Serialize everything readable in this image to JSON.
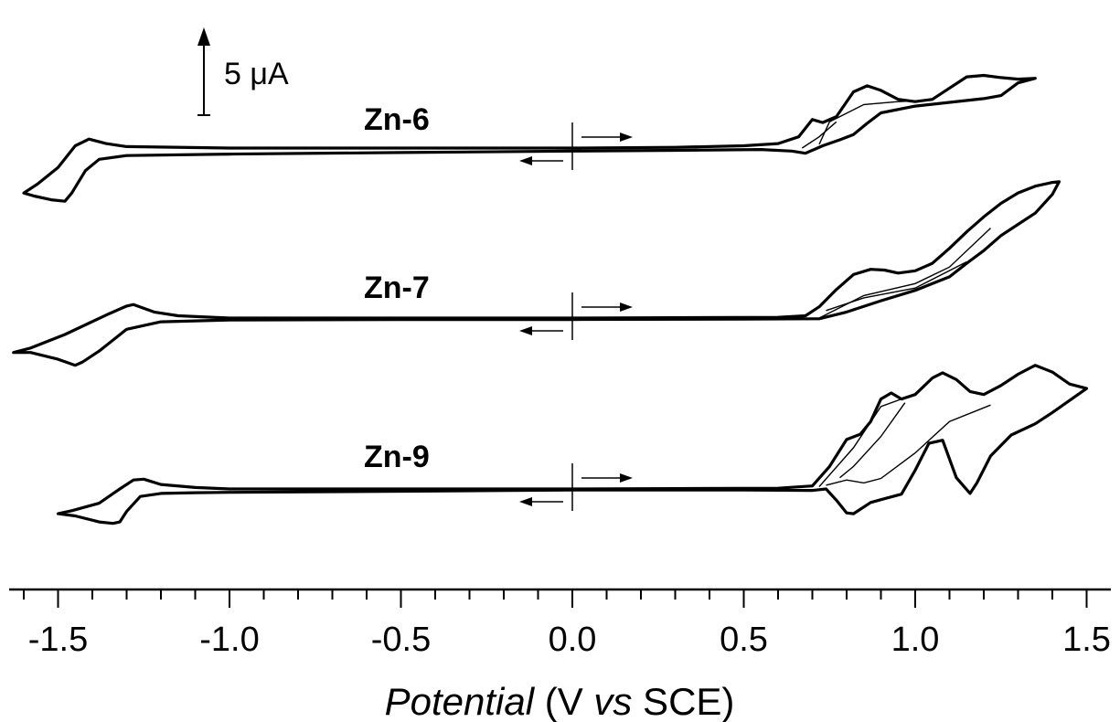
{
  "chart_data": {
    "type": "line",
    "title": "",
    "xlabel": {
      "italic": "Potential",
      "rest": " (V ",
      "vs": "vs",
      "unit": " SCE)"
    },
    "ylabel": "",
    "xlim": [
      -1.65,
      1.6
    ],
    "x_major_ticks": [
      -1.5,
      -1.0,
      -0.5,
      0.0,
      0.5,
      1.0,
      1.5
    ],
    "x_tick_labels": [
      "-1.5",
      "-1.0",
      "-0.5",
      "0.0",
      "0.5",
      "1.0",
      "1.5"
    ],
    "x_minor_step": 0.1,
    "grid": false,
    "scale_bar": {
      "label": "5 μA",
      "value_uA": 5
    },
    "series": [
      {
        "name": "Zn-6",
        "baseline_uA": 0,
        "forward": [
          [
            0,
            0
          ],
          [
            0.3,
            0.1
          ],
          [
            0.5,
            0.3
          ],
          [
            0.6,
            0.6
          ],
          [
            0.66,
            1.5
          ],
          [
            0.7,
            3.8
          ],
          [
            0.73,
            3.4
          ],
          [
            0.77,
            4.2
          ],
          [
            0.82,
            7.5
          ],
          [
            0.86,
            8.3
          ],
          [
            0.9,
            7.7
          ],
          [
            0.95,
            6.5
          ],
          [
            1.0,
            6.2
          ],
          [
            1.05,
            6.5
          ],
          [
            1.1,
            8.0
          ],
          [
            1.15,
            9.5
          ],
          [
            1.2,
            9.7
          ],
          [
            1.25,
            9.4
          ],
          [
            1.3,
            9.2
          ],
          [
            1.35,
            9.3
          ]
        ],
        "reverse": [
          [
            1.35,
            9.3
          ],
          [
            1.3,
            8.7
          ],
          [
            1.25,
            7.0
          ],
          [
            1.2,
            6.6
          ],
          [
            1.1,
            6.1
          ],
          [
            1.0,
            5.6
          ],
          [
            0.9,
            4.7
          ],
          [
            0.86,
            3.3
          ],
          [
            0.82,
            1.8
          ],
          [
            0.78,
            1.1
          ],
          [
            0.73,
            0.3
          ],
          [
            0.68,
            -0.7
          ],
          [
            0.64,
            -0.4
          ],
          [
            0.55,
            -0.2
          ],
          [
            0.3,
            -0.3
          ],
          [
            0,
            -0.4
          ],
          [
            -0.5,
            -0.6
          ],
          [
            -1.0,
            -0.8
          ],
          [
            -1.3,
            -1.0
          ],
          [
            -1.38,
            -1.5
          ],
          [
            -1.42,
            -3.0
          ],
          [
            -1.46,
            -6.0
          ],
          [
            -1.48,
            -7.1
          ],
          [
            -1.52,
            -6.9
          ],
          [
            -1.57,
            -6.4
          ],
          [
            -1.6,
            -6.0
          ],
          [
            -1.56,
            -4.8
          ],
          [
            -1.5,
            -2.6
          ],
          [
            -1.45,
            0.3
          ],
          [
            -1.41,
            1.2
          ],
          [
            -1.36,
            0.6
          ],
          [
            -1.3,
            0.2
          ],
          [
            -1.0,
            0.0
          ],
          [
            -0.5,
            0.0
          ],
          [
            0,
            0
          ]
        ],
        "thin_branches": [
          [
            [
              0.72,
              0.5
            ],
            [
              0.75,
              3.5
            ],
            [
              0.85,
              5.8
            ],
            [
              0.95,
              6.2
            ],
            [
              1.05,
              6.4
            ]
          ],
          [
            [
              0.67,
              0.0
            ],
            [
              0.72,
              1.5
            ],
            [
              0.77,
              3.5
            ]
          ]
        ]
      },
      {
        "name": "Zn-7",
        "baseline_uA": 0,
        "forward": [
          [
            0,
            0
          ],
          [
            0.3,
            0.05
          ],
          [
            0.6,
            0.1
          ],
          [
            0.68,
            0.3
          ],
          [
            0.72,
            1.5
          ],
          [
            0.77,
            3.8
          ],
          [
            0.82,
            5.8
          ],
          [
            0.87,
            6.5
          ],
          [
            0.91,
            6.4
          ],
          [
            0.95,
            6.0
          ],
          [
            1.0,
            6.3
          ],
          [
            1.05,
            7.3
          ],
          [
            1.1,
            9.3
          ],
          [
            1.15,
            11.5
          ],
          [
            1.2,
            13.5
          ],
          [
            1.25,
            15.3
          ],
          [
            1.3,
            16.7
          ],
          [
            1.35,
            17.6
          ],
          [
            1.4,
            18.1
          ],
          [
            1.42,
            18.2
          ]
        ],
        "reverse": [
          [
            1.42,
            18.2
          ],
          [
            1.4,
            16.5
          ],
          [
            1.35,
            14.0
          ],
          [
            1.3,
            12.5
          ],
          [
            1.25,
            11.0
          ],
          [
            1.2,
            9.0
          ],
          [
            1.15,
            7.3
          ],
          [
            1.1,
            5.5
          ],
          [
            1.0,
            3.7
          ],
          [
            0.9,
            2.3
          ],
          [
            0.8,
            0.8
          ],
          [
            0.72,
            -0.1
          ],
          [
            0.5,
            -0.15
          ],
          [
            0,
            -0.2
          ],
          [
            -0.5,
            -0.2
          ],
          [
            -1.0,
            -0.25
          ],
          [
            -1.2,
            -0.5
          ],
          [
            -1.3,
            -1.5
          ],
          [
            -1.38,
            -4.4
          ],
          [
            -1.43,
            -5.9
          ],
          [
            -1.45,
            -6.3
          ],
          [
            -1.5,
            -5.5
          ],
          [
            -1.58,
            -4.6
          ],
          [
            -1.63,
            -4.6
          ],
          [
            -1.58,
            -4.0
          ],
          [
            -1.48,
            -2.2
          ],
          [
            -1.35,
            0.6
          ],
          [
            -1.3,
            1.6
          ],
          [
            -1.28,
            1.8
          ],
          [
            -1.22,
            0.8
          ],
          [
            -1.15,
            0.3
          ],
          [
            -1.0,
            0.0
          ],
          [
            -0.5,
            0.0
          ],
          [
            0,
            0
          ]
        ],
        "thin_branches": [
          [
            [
              0.72,
              0.0
            ],
            [
              0.85,
              3.0
            ],
            [
              1.0,
              4.6
            ],
            [
              1.1,
              6.8
            ],
            [
              1.22,
              12.0
            ]
          ],
          [
            [
              0.74,
              1.0
            ],
            [
              0.85,
              2.7
            ],
            [
              1.0,
              4.0
            ],
            [
              1.15,
              7.5
            ]
          ]
        ]
      },
      {
        "name": "Zn-9",
        "baseline_uA": 0,
        "forward": [
          [
            0,
            0
          ],
          [
            0.3,
            0.05
          ],
          [
            0.6,
            0.1
          ],
          [
            0.7,
            0.4
          ],
          [
            0.75,
            3.0
          ],
          [
            0.8,
            6.6
          ],
          [
            0.84,
            7.3
          ],
          [
            0.87,
            9.0
          ],
          [
            0.9,
            12.0
          ],
          [
            0.93,
            12.8
          ],
          [
            0.96,
            12.0
          ],
          [
            1.0,
            12.6
          ],
          [
            1.05,
            14.8
          ],
          [
            1.08,
            15.5
          ],
          [
            1.12,
            14.6
          ],
          [
            1.16,
            13.0
          ],
          [
            1.2,
            12.6
          ],
          [
            1.25,
            13.8
          ],
          [
            1.3,
            15.3
          ],
          [
            1.35,
            16.5
          ],
          [
            1.4,
            15.6
          ],
          [
            1.45,
            14.0
          ],
          [
            1.5,
            13.4
          ]
        ],
        "reverse": [
          [
            1.5,
            13.4
          ],
          [
            1.45,
            11.8
          ],
          [
            1.4,
            10.2
          ],
          [
            1.35,
            8.7
          ],
          [
            1.28,
            7.2
          ],
          [
            1.22,
            4.4
          ],
          [
            1.18,
            0.8
          ],
          [
            1.16,
            -0.6
          ],
          [
            1.12,
            1.5
          ],
          [
            1.08,
            6.5
          ],
          [
            1.04,
            6.1
          ],
          [
            1.0,
            2.5
          ],
          [
            0.96,
            -0.7
          ],
          [
            0.91,
            -1.3
          ],
          [
            0.87,
            -1.8
          ],
          [
            0.82,
            -3.3
          ],
          [
            0.8,
            -3.2
          ],
          [
            0.77,
            -1.5
          ],
          [
            0.74,
            0.0
          ],
          [
            0.7,
            -0.2
          ],
          [
            0.5,
            -0.15
          ],
          [
            0,
            -0.15
          ],
          [
            -0.5,
            -0.3
          ],
          [
            -1.0,
            -0.45
          ],
          [
            -1.1,
            -0.5
          ],
          [
            -1.2,
            -0.6
          ],
          [
            -1.26,
            -1.0
          ],
          [
            -1.3,
            -3.0
          ],
          [
            -1.32,
            -4.4
          ],
          [
            -1.34,
            -4.6
          ],
          [
            -1.38,
            -4.4
          ],
          [
            -1.45,
            -3.6
          ],
          [
            -1.5,
            -3.3
          ],
          [
            -1.46,
            -2.9
          ],
          [
            -1.38,
            -1.9
          ],
          [
            -1.32,
            0.0
          ],
          [
            -1.28,
            1.2
          ],
          [
            -1.25,
            1.3
          ],
          [
            -1.2,
            0.6
          ],
          [
            -1.1,
            0.2
          ],
          [
            -1.0,
            0.0
          ],
          [
            -0.5,
            0.0
          ],
          [
            0,
            0
          ]
        ],
        "thin_branches": [
          [
            [
              0.72,
              0.3
            ],
            [
              0.82,
              5.5
            ],
            [
              0.9,
              11.0
            ],
            [
              0.96,
              12.0
            ]
          ],
          [
            [
              0.74,
              0.5
            ],
            [
              0.8,
              1.2
            ],
            [
              0.85,
              0.8
            ],
            [
              0.9,
              1.4
            ],
            [
              1.0,
              4.8
            ],
            [
              1.1,
              9.0
            ],
            [
              1.22,
              11.2
            ]
          ],
          [
            [
              0.78,
              1.5
            ],
            [
              0.82,
              3.0
            ],
            [
              0.9,
              7.0
            ],
            [
              0.97,
              11.5
            ]
          ]
        ]
      }
    ],
    "direction_arrows": "at 0.0 V: forward arrow to the right above, reverse arrow to the left below"
  }
}
